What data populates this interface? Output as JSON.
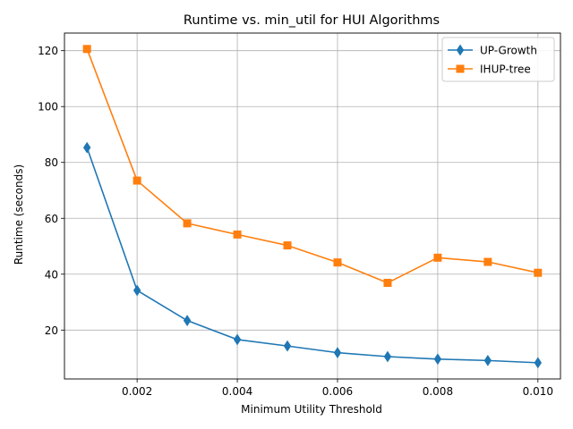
{
  "chart_data": {
    "type": "line",
    "title": "Runtime vs. min_util for HUI Algorithms",
    "xlabel": "Minimum Utility Threshold",
    "ylabel": "Runtime (seconds)",
    "x": [
      0.001,
      0.002,
      0.003,
      0.004,
      0.005,
      0.006,
      0.007,
      0.008,
      0.009,
      0.01
    ],
    "x_ticks": [
      "0.002",
      "0.004",
      "0.006",
      "0.008",
      "0.010"
    ],
    "y_ticks": [
      "20",
      "40",
      "60",
      "80",
      "100",
      "120"
    ],
    "xlim": [
      0.00055,
      0.01045
    ],
    "ylim": [
      2.5,
      126.3
    ],
    "grid": true,
    "legend_position": "top-right",
    "series": [
      {
        "name": "UP-Growth",
        "marker": "diamond",
        "color": "#1f77b4",
        "values": [
          85.3,
          34.2,
          23.4,
          16.6,
          14.3,
          11.9,
          10.5,
          9.6,
          9.1,
          8.3
        ]
      },
      {
        "name": "IHUP-tree",
        "marker": "square",
        "color": "#ff7f0e",
        "values": [
          120.6,
          73.5,
          58.2,
          54.2,
          50.3,
          44.2,
          36.9,
          45.9,
          44.4,
          40.5
        ]
      }
    ]
  }
}
